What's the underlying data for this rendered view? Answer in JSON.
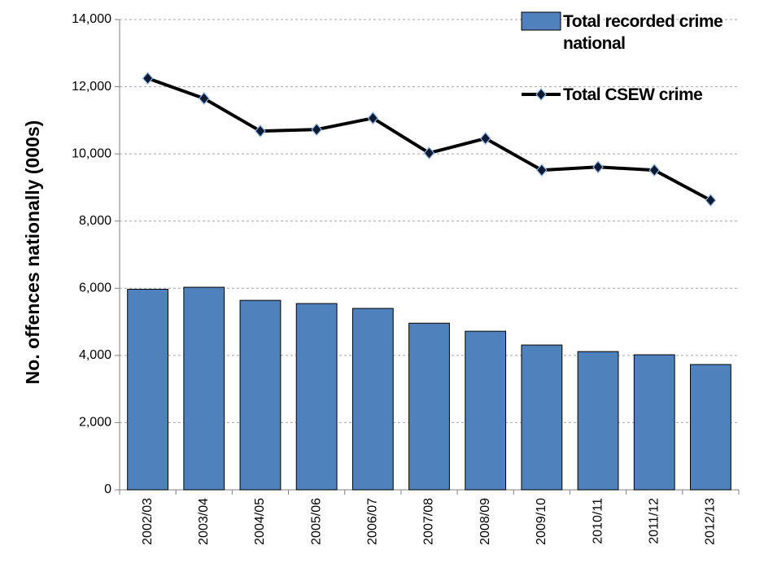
{
  "chart_data": {
    "type": "combo",
    "y_label": "No. offences nationally (000s)",
    "categories": [
      "2002/03",
      "2003/04",
      "2004/05",
      "2005/06",
      "2006/07",
      "2007/08",
      "2008/09",
      "2009/10",
      "2010/11",
      "2011/12",
      "2012/13"
    ],
    "series": [
      {
        "name": "Total recorded crime national",
        "type": "bar",
        "color": "#4f81bd",
        "values": [
          5970,
          6030,
          5640,
          5545,
          5400,
          4960,
          4720,
          4310,
          4115,
          4020,
          3730
        ]
      },
      {
        "name": "Total CSEW crime",
        "type": "line",
        "color": "#000000",
        "values": [
          12250,
          11650,
          10680,
          10725,
          11065,
          10025,
          10460,
          9515,
          9610,
          9515,
          8620
        ]
      }
    ],
    "ylim": [
      0,
      14000
    ],
    "yticks": [
      0,
      {
        "value": 2000,
        "label": "2,000"
      },
      {
        "value": 4000,
        "label": "4,000"
      },
      {
        "value": 6000,
        "label": "6,000"
      },
      {
        "value": 8000,
        "label": "8,000"
      },
      {
        "value": 10000,
        "label": "10,000"
      },
      {
        "value": 12000,
        "label": "12,000"
      },
      {
        "value": 14000,
        "label": "14,000"
      }
    ],
    "grid": true,
    "legend": "top-right"
  }
}
